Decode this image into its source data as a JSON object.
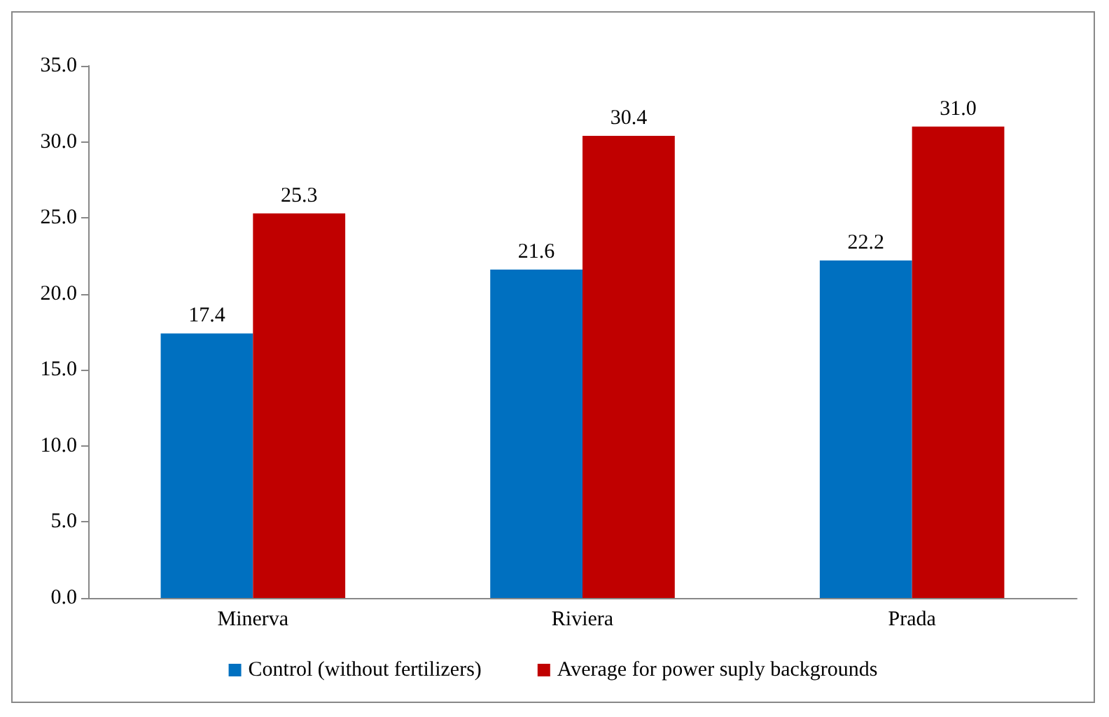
{
  "chart_data": {
    "type": "bar",
    "categories": [
      "Minerva",
      "Riviera",
      "Prada"
    ],
    "series": [
      {
        "name": "Control (without fertilizers)",
        "color": "#0070c0",
        "values": [
          17.4,
          21.6,
          22.2
        ],
        "value_labels": [
          "17.4",
          "21.6",
          "22.2"
        ]
      },
      {
        "name": "Average for power suply backgrounds",
        "color": "#c00000",
        "values": [
          25.3,
          30.4,
          31.0
        ],
        "value_labels": [
          "25.3",
          "30.4",
          "31.0"
        ]
      }
    ],
    "ylim": [
      0,
      35
    ],
    "yticks": [
      {
        "value": 0,
        "label": "0.0"
      },
      {
        "value": 5,
        "label": "5.0"
      },
      {
        "value": 10,
        "label": "10.0"
      },
      {
        "value": 15,
        "label": "15.0"
      },
      {
        "value": 20,
        "label": "20.0"
      },
      {
        "value": 25,
        "label": "25.0"
      },
      {
        "value": 30,
        "label": "30.0"
      },
      {
        "value": 35,
        "label": "35.0"
      }
    ],
    "grid": false,
    "legend": "bottom"
  }
}
